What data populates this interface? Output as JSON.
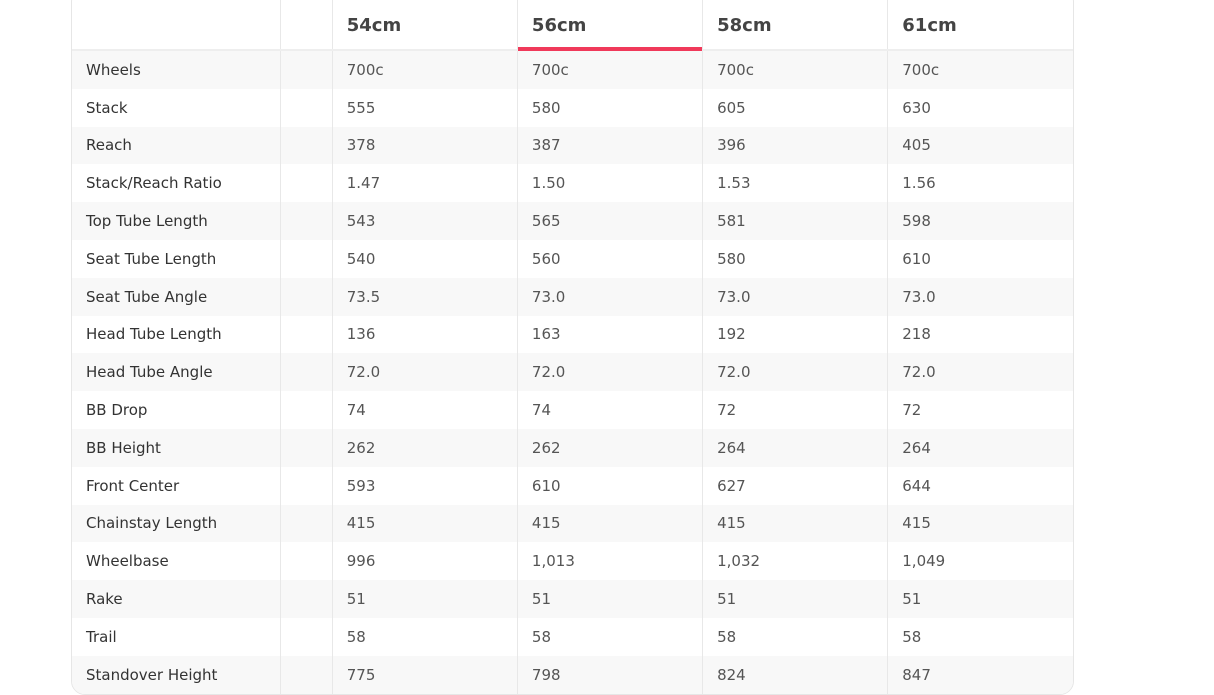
{
  "accent_color": "#f0395a",
  "selected_size": "56cm",
  "columns": [
    "54cm",
    "56cm",
    "58cm",
    "61cm"
  ],
  "rows": [
    {
      "label": "Wheels",
      "values": [
        "700c",
        "700c",
        "700c",
        "700c"
      ]
    },
    {
      "label": "Stack",
      "values": [
        "555",
        "580",
        "605",
        "630"
      ]
    },
    {
      "label": "Reach",
      "values": [
        "378",
        "387",
        "396",
        "405"
      ]
    },
    {
      "label": "Stack/Reach Ratio",
      "values": [
        "1.47",
        "1.50",
        "1.53",
        "1.56"
      ]
    },
    {
      "label": "Top Tube Length",
      "values": [
        "543",
        "565",
        "581",
        "598"
      ]
    },
    {
      "label": "Seat Tube Length",
      "values": [
        "540",
        "560",
        "580",
        "610"
      ]
    },
    {
      "label": "Seat Tube Angle",
      "values": [
        "73.5",
        "73.0",
        "73.0",
        "73.0"
      ]
    },
    {
      "label": "Head Tube Length",
      "values": [
        "136",
        "163",
        "192",
        "218"
      ]
    },
    {
      "label": "Head Tube Angle",
      "values": [
        "72.0",
        "72.0",
        "72.0",
        "72.0"
      ]
    },
    {
      "label": "BB Drop",
      "values": [
        "74",
        "74",
        "72",
        "72"
      ]
    },
    {
      "label": "BB Height",
      "values": [
        "262",
        "262",
        "264",
        "264"
      ]
    },
    {
      "label": "Front Center",
      "values": [
        "593",
        "610",
        "627",
        "644"
      ]
    },
    {
      "label": "Chainstay Length",
      "values": [
        "415",
        "415",
        "415",
        "415"
      ]
    },
    {
      "label": "Wheelbase",
      "values": [
        "996",
        "1,013",
        "1,032",
        "1,049"
      ]
    },
    {
      "label": "Rake",
      "values": [
        "51",
        "51",
        "51",
        "51"
      ]
    },
    {
      "label": "Trail",
      "values": [
        "58",
        "58",
        "58",
        "58"
      ]
    },
    {
      "label": "Standover Height",
      "values": [
        "775",
        "798",
        "824",
        "847"
      ]
    }
  ]
}
